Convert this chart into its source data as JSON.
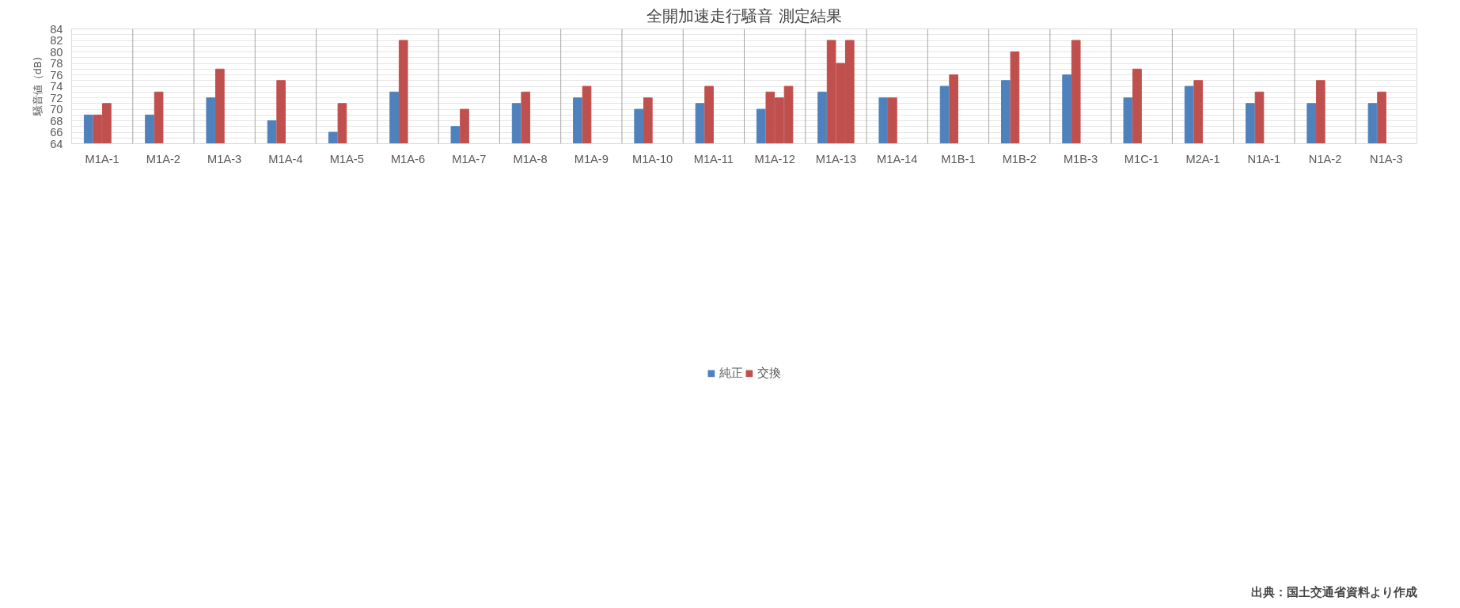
{
  "chart_data": {
    "type": "bar",
    "title": "全開加速走行騒音 測定結果",
    "ylabel": "騒音値（dB)",
    "categories": [
      "M1A-1",
      "M1A-2",
      "M1A-3",
      "M1A-4",
      "M1A-5",
      "M1A-6",
      "M1A-7",
      "M1A-8",
      "M1A-9",
      "M1A-10",
      "M1A-11",
      "M1A-12",
      "M1A-13",
      "M1A-14",
      "M1B-1",
      "M1B-2",
      "M1B-3",
      "M1C-1",
      "M2A-1",
      "N1A-1",
      "N1A-2",
      "N1A-3"
    ],
    "series": [
      {
        "name": "純正",
        "color": "#4f81bd",
        "values": [
          69,
          69,
          72,
          68,
          66,
          73,
          67,
          71,
          72,
          70,
          71,
          70,
          73,
          72,
          74,
          75,
          76,
          72,
          74,
          71,
          71,
          71
        ]
      },
      {
        "name": "交換",
        "color": "#c0504d",
        "values": [
          69,
          73,
          77,
          75,
          71,
          82,
          70,
          73,
          74,
          72,
          74,
          73,
          82,
          72,
          76,
          80,
          82,
          77,
          75,
          73,
          75,
          73
        ]
      },
      {
        "color": "#c0504d",
        "values": [
          71,
          null,
          null,
          null,
          null,
          null,
          null,
          null,
          null,
          null,
          null,
          72,
          78,
          null,
          null,
          null,
          null,
          null,
          null,
          null,
          null,
          null
        ]
      },
      {
        "color": "#c0504d",
        "values": [
          null,
          null,
          null,
          null,
          null,
          null,
          null,
          null,
          null,
          null,
          null,
          74,
          82,
          null,
          null,
          null,
          null,
          null,
          null,
          null,
          null,
          null
        ]
      }
    ],
    "ylim": [
      64,
      84
    ],
    "yticks": [
      64,
      {
        "value": 65,
        "label": null
      },
      66,
      {
        "value": 67,
        "label": null
      },
      68,
      {
        "value": 69,
        "label": null
      },
      70,
      {
        "value": 71,
        "label": null
      },
      72,
      {
        "value": 73,
        "label": null
      },
      74,
      {
        "value": 75,
        "label": null
      },
      76,
      {
        "value": 77,
        "label": null
      },
      78,
      {
        "value": 79,
        "label": null
      },
      80,
      {
        "value": 81,
        "label": null
      },
      82,
      {
        "value": 83,
        "label": null
      },
      84
    ],
    "grid": true,
    "legend": "bottom",
    "annotations": [
      "出典：国土交通省資料より作成"
    ]
  }
}
